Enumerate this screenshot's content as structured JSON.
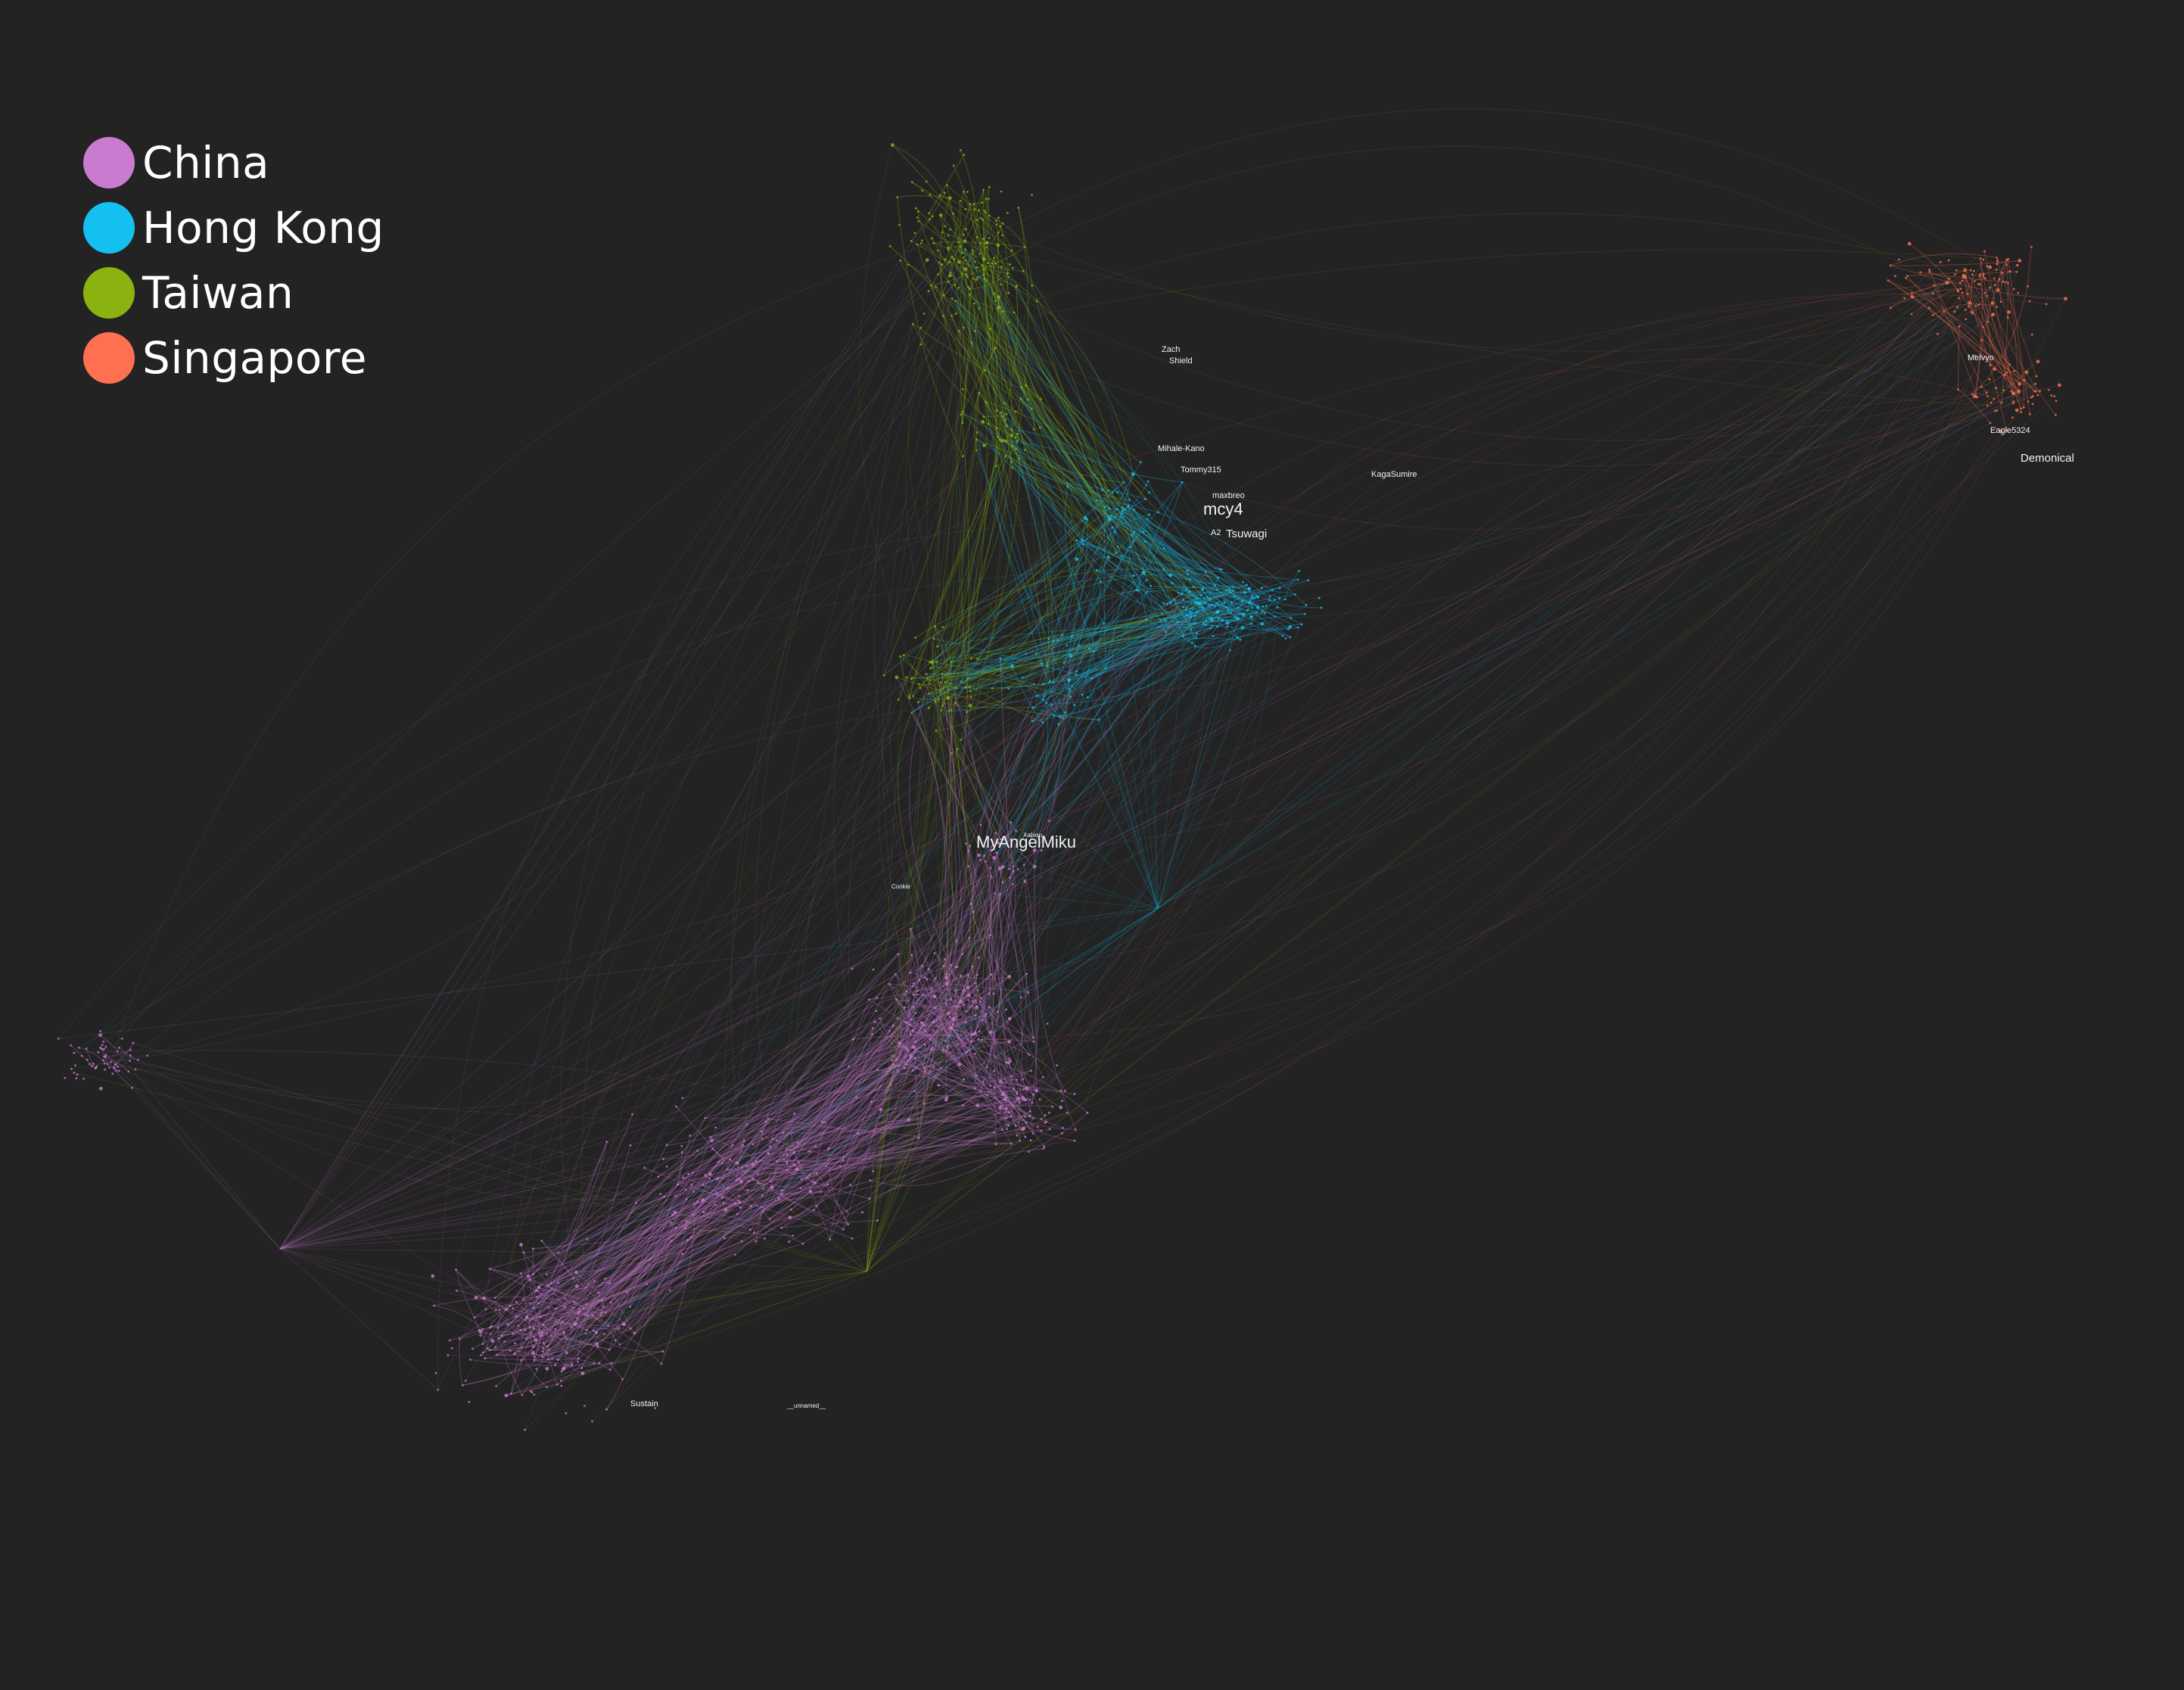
{
  "legend": [
    {
      "label": "China",
      "color": "#c97bd0"
    },
    {
      "label": "Hong Kong",
      "color": "#14c0f0"
    },
    {
      "label": "Taiwan",
      "color": "#8ab30f"
    },
    {
      "label": "Singapore",
      "color": "#ff7050"
    }
  ],
  "colors": {
    "background": "#232323",
    "china": "#c97bd0",
    "hong_kong": "#14c0f0",
    "taiwan": "#8ab30f",
    "singapore": "#ff7050",
    "label": "#f2f2f2"
  },
  "node_labels": [
    {
      "text": "mcy4",
      "size": "large"
    },
    {
      "text": "MyAngelMiku",
      "size": "large"
    },
    {
      "text": "Demonical",
      "size": "medium"
    },
    {
      "text": "Tsuwagi",
      "size": "medium"
    },
    {
      "text": "maxbreo",
      "size": "small"
    },
    {
      "text": "Mihale-Kano",
      "size": "small"
    },
    {
      "text": "Tommy315",
      "size": "small"
    },
    {
      "text": "KagaSumire",
      "size": "small"
    },
    {
      "text": "Shield",
      "size": "small"
    },
    {
      "text": "Zach",
      "size": "small"
    },
    {
      "text": "Eagle5324",
      "size": "small"
    },
    {
      "text": "Melvyo",
      "size": "small"
    },
    {
      "text": "Sustain",
      "size": "small"
    },
    {
      "text": "A2",
      "size": "small"
    },
    {
      "text": "Xabion",
      "size": "tiny"
    },
    {
      "text": "Cookie",
      "size": "tiny"
    },
    {
      "text": "__unnamed__",
      "size": "tiny"
    }
  ]
}
